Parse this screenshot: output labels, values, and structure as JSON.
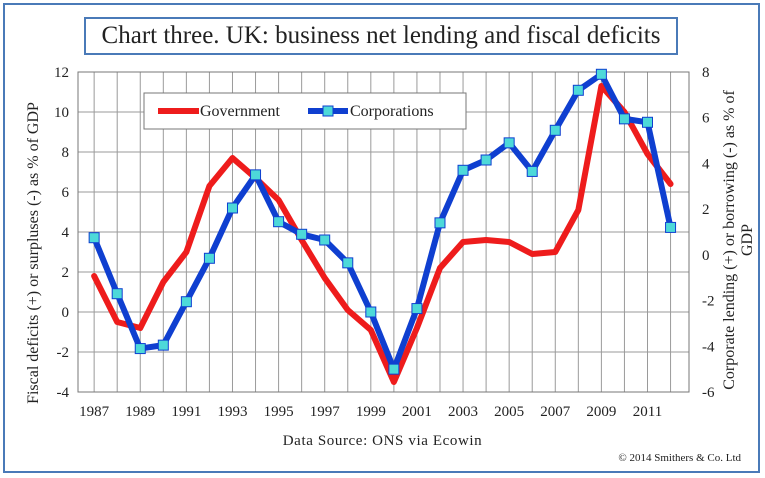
{
  "chart_data": {
    "type": "line",
    "title": "Chart three. UK: business net lending and fiscal deficits",
    "ylabel": "Fiscal deficits (+) or surpluses (-) as % of GDP",
    "y2label": "Corporate lending (+) or borrowing (-) as % of GDP",
    "xlabel": "",
    "x": [
      1987,
      1988,
      1989,
      1990,
      1991,
      1992,
      1993,
      1994,
      1995,
      1996,
      1997,
      1998,
      1999,
      2000,
      2001,
      2002,
      2003,
      2004,
      2005,
      2006,
      2007,
      2008,
      2009,
      2010,
      2011,
      2012
    ],
    "xticks": [
      "1987",
      "1989",
      "1991",
      "1993",
      "1995",
      "1997",
      "1999",
      "2001",
      "2003",
      "2005",
      "2007",
      "2009",
      "2011"
    ],
    "ylim": [
      -4,
      12
    ],
    "yticks": [
      "-4",
      "-2",
      "0",
      "2",
      "4",
      "6",
      "8",
      "10",
      "12"
    ],
    "y2lim": [
      -6,
      8
    ],
    "y2ticks": [
      "-6",
      "-4",
      "-2",
      "0",
      "2",
      "4",
      "6",
      "8"
    ],
    "grid": true,
    "legend_position": "top-left",
    "series": [
      {
        "name": "Government",
        "axis": "left",
        "color": "#ee1c1c",
        "marker": "none",
        "values": [
          1.8,
          -0.5,
          -0.8,
          1.5,
          3.0,
          6.3,
          7.7,
          6.7,
          5.6,
          3.6,
          1.7,
          0.1,
          -0.9,
          -3.5,
          -0.8,
          2.2,
          3.5,
          3.6,
          3.5,
          2.9,
          3.0,
          5.1,
          11.3,
          10.0,
          7.9,
          6.4
        ]
      },
      {
        "name": "Corporations",
        "axis": "right",
        "color": "#0f3fd0",
        "marker": "square",
        "marker_color": "#4dd9d9",
        "values": [
          0.75,
          -1.7,
          -4.1,
          -3.95,
          -2.05,
          -0.15,
          2.05,
          3.5,
          1.45,
          0.9,
          0.65,
          -0.35,
          -2.5,
          -5.0,
          -2.35,
          1.4,
          3.7,
          4.15,
          4.9,
          3.65,
          5.45,
          7.2,
          7.9,
          5.95,
          5.8,
          1.2
        ]
      }
    ]
  },
  "source": "Data Source: ONS via Ecowin",
  "copyright": "© 2014 Smithers & Co. Ltd"
}
